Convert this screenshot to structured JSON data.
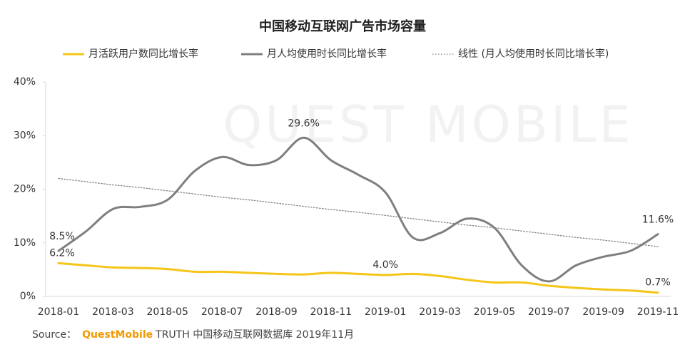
{
  "chart_data": {
    "type": "line",
    "title": "中国移动互联网广告市场容量",
    "watermark": "QUEST MOBILE",
    "categories": [
      "2018-01",
      null,
      "2018-03",
      null,
      "2018-05",
      null,
      "2018-07",
      null,
      "2018-09",
      null,
      "2018-11",
      null,
      "2019-01",
      null,
      "2019-03",
      null,
      "2019-05",
      null,
      "2019-07",
      null,
      "2019-09",
      null,
      "2019-11"
    ],
    "series": [
      {
        "name": "月活跃用户数同比增长率",
        "color": "#f5c518",
        "style": "solid",
        "values": [
          6.2,
          5.8,
          5.4,
          5.3,
          5.1,
          4.6,
          4.6,
          4.4,
          4.2,
          4.1,
          4.4,
          4.2,
          4.0,
          4.2,
          3.8,
          3.1,
          2.6,
          2.6,
          2.0,
          1.6,
          1.3,
          1.1,
          0.7
        ],
        "value_labels": [
          "6.2%",
          null,
          null,
          null,
          null,
          null,
          null,
          null,
          null,
          null,
          null,
          null,
          "4.0%",
          null,
          null,
          null,
          null,
          null,
          null,
          null,
          null,
          null,
          "0.7%"
        ]
      },
      {
        "name": "月人均使用时长同比增长率",
        "color": "#7f7f7f",
        "style": "solid",
        "values": [
          8.5,
          12.1,
          16.3,
          16.7,
          18.0,
          23.4,
          26.0,
          24.5,
          25.4,
          29.6,
          25.4,
          22.7,
          19.4,
          11.0,
          11.8,
          14.5,
          12.8,
          5.8,
          2.8,
          5.8,
          7.4,
          8.5,
          11.6
        ],
        "value_labels": [
          "8.5%",
          null,
          null,
          null,
          null,
          null,
          null,
          null,
          null,
          "29.6%",
          null,
          null,
          null,
          null,
          null,
          null,
          null,
          null,
          null,
          null,
          null,
          null,
          "11.6%"
        ]
      },
      {
        "name": "线性 (月人均使用时长同比增长率)",
        "color": "#808080",
        "style": "dotted",
        "values": [
          22.0,
          21.4,
          20.8,
          20.3,
          19.7,
          19.1,
          18.5,
          18.0,
          17.4,
          16.8,
          16.2,
          15.7,
          15.1,
          14.5,
          13.9,
          13.3,
          12.8,
          12.2,
          11.6,
          11.0,
          10.5,
          9.9,
          9.3
        ]
      }
    ],
    "ylim": [
      0,
      40
    ],
    "yticks": [
      {
        "value": 0,
        "label": "0%"
      },
      {
        "value": 10,
        "label": "10%"
      },
      {
        "value": 20,
        "label": "20%"
      },
      {
        "value": 30,
        "label": "30%"
      },
      {
        "value": 40,
        "label": "40%"
      }
    ],
    "grid": false,
    "legend": "top",
    "source": {
      "prefix": "Source：",
      "brand": "QuestMobile",
      "text": "TRUTH 中国移动互联网数据库 2019年11月"
    }
  }
}
